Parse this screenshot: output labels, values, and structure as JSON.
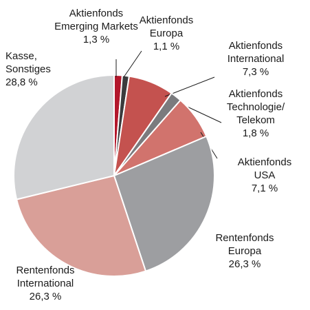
{
  "chart_data": {
    "type": "pie",
    "categories": [
      "Aktienfonds\nEmerging Markets",
      "Aktienfonds\nEuropa",
      "Aktienfonds\nInternational",
      "Aktienfonds\nTechnologie/\nTelekom",
      "Aktienfonds USA",
      "Rentenfonds\nEuropa",
      "Rentenfonds\nInternational",
      "Kasse,\nSonstiges"
    ],
    "values": [
      1.3,
      1.1,
      7.3,
      1.8,
      7.1,
      26.3,
      26.3,
      28.8
    ],
    "value_labels": [
      "1,3 %",
      "1,1 %",
      "7,3 %",
      "1,8 %",
      "7,1 %",
      "26,3 %",
      "26,3 %",
      "28,8 %"
    ],
    "colors": [
      "#b3172b",
      "#3b3b3d",
      "#c4524f",
      "#7b7b7e",
      "#d1736d",
      "#9d9ea1",
      "#d99f98",
      "#d1d2d4"
    ]
  }
}
